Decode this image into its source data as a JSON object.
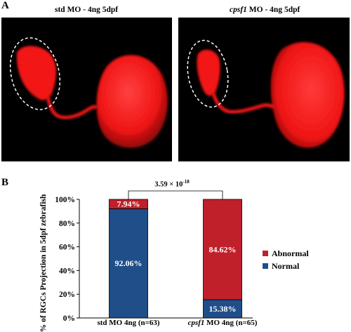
{
  "panelA": {
    "letter": "A",
    "left": {
      "title_prefix": "",
      "title_italic": "std",
      "title_rest": " MO - 4ng 5dpf"
    },
    "right": {
      "title_italic": "cpsf1",
      "title_rest": " MO - 4ng 5dpf"
    }
  },
  "panelB": {
    "letter": "B",
    "pvalue_base": "3.59 × 10",
    "pvalue_exp": "-18",
    "legend": {
      "abnormal": "Abnormal",
      "normal": "Normal"
    },
    "categories": [
      {
        "italic": "",
        "text": "std MO 4ng (n=63)"
      },
      {
        "italic": "cpsf1",
        "text": " MO 4ng (n=65)"
      }
    ]
  },
  "colors": {
    "normal": "#1f4e89",
    "abnormal": "#c0202a",
    "fluor": "#ff1a1a"
  },
  "chart_data": {
    "type": "bar",
    "stacked": true,
    "categories": [
      "std MO 4ng (n=63)",
      "cpsf1 MO 4ng (n=65)"
    ],
    "series": [
      {
        "name": "Normal",
        "values": [
          92.06,
          15.38
        ],
        "labels": [
          "92.06%",
          "15.38%"
        ]
      },
      {
        "name": "Abnormal",
        "values": [
          7.94,
          84.62
        ],
        "labels": [
          "7.94%",
          "84.62%"
        ]
      }
    ],
    "ylabel": "% of RGCs  Projection  in 5dpf zebrafish",
    "ylim": [
      0,
      100
    ],
    "yticks": [
      "0%",
      "20%",
      "40%",
      "60%",
      "80%",
      "100%"
    ],
    "legend_position": "right"
  }
}
